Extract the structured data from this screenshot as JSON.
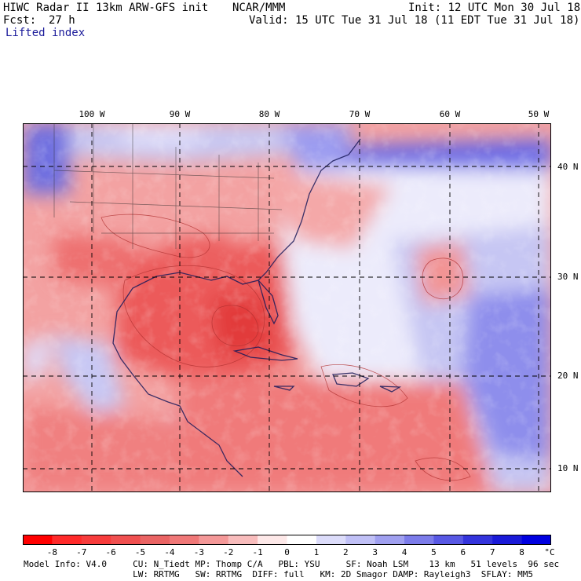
{
  "header": {
    "model_title": "HIWC Radar II 13km ARW-GFS init",
    "org": "NCAR/MMM",
    "init": "Init: 12 UTC Mon 30 Jul 18",
    "fcst_label": "Fcst:",
    "fcst_value": "27 h",
    "valid": "Valid: 15 UTC Tue 31 Jul 18 (11 EDT Tue 31 Jul 18)",
    "field_name": "Lifted index"
  },
  "map": {
    "lon_labels": [
      "100 W",
      "90 W",
      "80 W",
      "70 W",
      "60 W",
      "50 W"
    ],
    "lat_labels": [
      "40 N",
      "30 N",
      "20 N",
      "10 N"
    ]
  },
  "colorbar": {
    "labels": [
      "-8",
      "-7",
      "-6",
      "-5",
      "-4",
      "-3",
      "-2",
      "-1",
      "0",
      "1",
      "2",
      "3",
      "4",
      "5",
      "6",
      "7",
      "8"
    ],
    "unit": "°C",
    "colors": [
      "#ff0000",
      "#ff2a2a",
      "#f73c3c",
      "#f05050",
      "#ea6464",
      "#f07878",
      "#f49898",
      "#f8bcbc",
      "#fde8e8",
      "#ffffff",
      "#dcdcfa",
      "#c0c0f6",
      "#a0a0f0",
      "#7c7cea",
      "#5858e4",
      "#3434dc",
      "#1a1ad8",
      "#0000e0"
    ]
  },
  "footer": {
    "line1": "Model Info: V4.0     CU: N_Tiedt MP: Thomp C/A   PBL: YSU     SF: Noah LSM    13 km   51 levels  96 sec",
    "line2": "                     LW: RRTMG   SW: RRTMG  DIFF: full   KM: 2D Smagor DAMP: Rayleigh3  SFLAY: MM5"
  }
}
